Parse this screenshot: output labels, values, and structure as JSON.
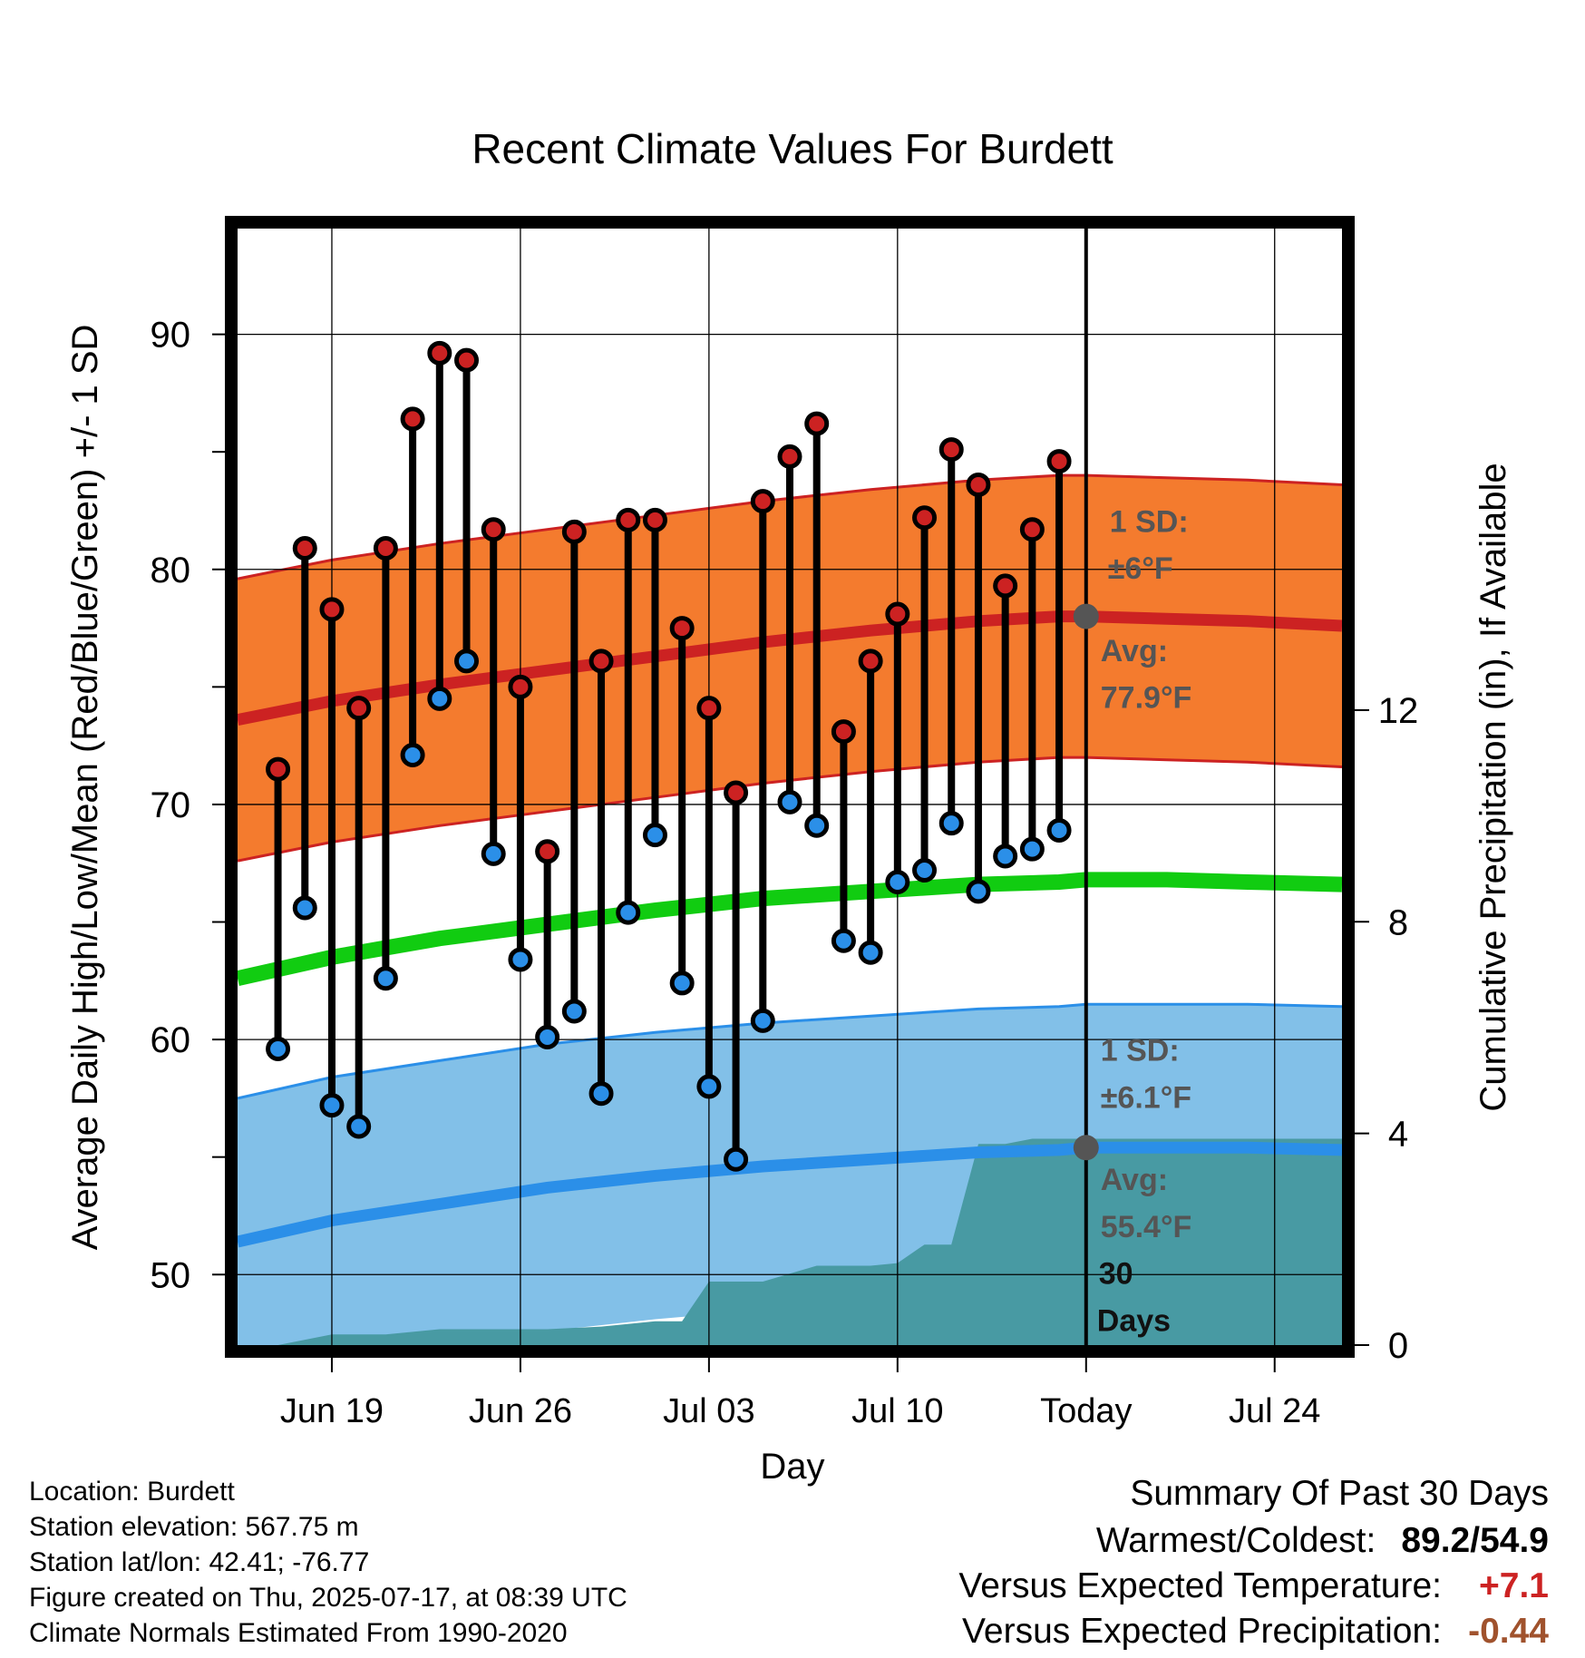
{
  "chart_data": {
    "type": "line",
    "title": "Recent Climate Values For Burdett",
    "xlabel": "Day",
    "ylabel": "Average Daily High/Low/Mean (Red/Blue/Green) +/- 1 SD",
    "y2label": "Cumulative Precipitation (in), If Available",
    "ylim": [
      47.0,
      94.5
    ],
    "y2lim": [
      0,
      21.1
    ],
    "xlim_days_relative_to_today": [
      -31.5,
      9.5
    ],
    "x_tick_labels": [
      "Jun 19",
      "Jun 26",
      "Jul 03",
      "Jul 10",
      "Today",
      "Jul 24"
    ],
    "y_ticks": [
      50,
      60,
      70,
      80,
      90
    ],
    "y2_ticks": [
      0,
      4,
      8,
      12
    ],
    "grid": true,
    "today_marker": "Today",
    "days": [
      "Jun 17",
      "Jun 18",
      "Jun 19",
      "Jun 20",
      "Jun 21",
      "Jun 22",
      "Jun 23",
      "Jun 24",
      "Jun 25",
      "Jun 26",
      "Jun 27",
      "Jun 28",
      "Jun 29",
      "Jun 30",
      "Jul 01",
      "Jul 02",
      "Jul 03",
      "Jul 04",
      "Jul 05",
      "Jul 06",
      "Jul 07",
      "Jul 08",
      "Jul 09",
      "Jul 10",
      "Jul 11",
      "Jul 12",
      "Jul 13",
      "Jul 14",
      "Jul 15",
      "Jul 16"
    ],
    "series": [
      {
        "name": "High",
        "color": "#cc2222",
        "values": [
          71.5,
          80.9,
          78.3,
          74.1,
          80.9,
          86.4,
          89.2,
          88.9,
          81.7,
          75.0,
          68.0,
          81.6,
          76.1,
          82.1,
          82.1,
          77.5,
          74.1,
          70.5,
          82.9,
          84.8,
          86.2,
          73.1,
          76.1,
          78.1,
          82.2,
          85.1,
          83.6,
          79.3,
          81.7,
          84.6
        ]
      },
      {
        "name": "Low",
        "color": "#2b8fe8",
        "values": [
          59.6,
          65.6,
          57.2,
          56.3,
          62.6,
          72.1,
          74.5,
          76.1,
          67.9,
          63.4,
          60.1,
          61.2,
          57.7,
          65.4,
          68.7,
          62.4,
          58.0,
          54.9,
          60.8,
          70.1,
          69.1,
          64.2,
          63.7,
          66.7,
          67.2,
          69.2,
          66.3,
          67.8,
          68.1,
          68.9
        ]
      }
    ],
    "normals": {
      "high_avg": [
        73.6,
        74.4,
        75.1,
        75.7,
        76.3,
        76.9,
        77.4,
        77.8,
        78.0,
        78.0,
        77.9,
        77.8,
        77.6
      ],
      "high_sd": 6,
      "low_avg": [
        51.4,
        52.3,
        53.0,
        53.7,
        54.2,
        54.6,
        54.9,
        55.2,
        55.3,
        55.4,
        55.4,
        55.4,
        55.3
      ],
      "low_sd": 6.1,
      "mean_avg": [
        62.6,
        63.5,
        64.3,
        64.9,
        65.5,
        66.0,
        66.3,
        66.6,
        66.7,
        66.8,
        66.8,
        66.7,
        66.6
      ],
      "normals_x_days_relative_to_today": [
        -31.5,
        -28,
        -24,
        -20,
        -16,
        -12,
        -8,
        -4,
        -1,
        0,
        3,
        6,
        9.5
      ]
    },
    "precip_cumulative": {
      "x_days_relative_to_today": [
        -31.5,
        -30,
        -28,
        -26,
        -24,
        -22,
        -20,
        -18,
        -16,
        -15,
        -14,
        -13,
        -12,
        -10,
        -9,
        -8,
        -7,
        -6,
        -5,
        -4,
        -3.5,
        -3,
        -2,
        -1,
        0,
        9.5
      ],
      "values": [
        0,
        0,
        0.2,
        0.2,
        0.3,
        0.3,
        0.3,
        0.35,
        0.45,
        0.45,
        1.2,
        1.2,
        1.2,
        1.5,
        1.5,
        1.5,
        1.55,
        1.9,
        1.9,
        3.8,
        3.8,
        3.8,
        3.9,
        3.9,
        3.9,
        3.9
      ]
    },
    "annotations": {
      "high_sd_label": "1 SD:",
      "high_sd_value": "±6°F",
      "high_avg_label": "Avg:",
      "high_avg_value": "77.9°F",
      "low_sd_label": "1 SD:",
      "low_sd_value": "±6.1°F",
      "low_avg_label": "Avg:",
      "low_avg_value": "55.4°F",
      "period_num": "30",
      "period_unit": "Days"
    },
    "colors": {
      "high_band": "#f47b2e",
      "high_line": "#cc2222",
      "low_band": "#82c0e8",
      "low_line": "#2b8fe8",
      "mean_line": "#11cc11",
      "precip": "#489aa3",
      "annotation_text": "#555555"
    }
  },
  "info": {
    "location": "Location: Burdett",
    "elevation": "Station elevation: 567.75 m",
    "latlon": "Station lat/lon: 42.41; -76.77",
    "created": "Figure created on Thu, 2025-07-17, at 08:39 UTC",
    "normals": "Climate Normals Estimated From 1990-2020"
  },
  "summary": {
    "title": "Summary Of Past 30 Days",
    "warmest_coldest_label": "Warmest/Coldest:",
    "warmest_coldest_value": "89.2/54.9",
    "temp_label": "Versus Expected Temperature:",
    "temp_value": "+7.1",
    "temp_color": "#cc2222",
    "precip_label": "Versus Expected Precipitation:",
    "precip_value": "-0.44",
    "precip_color": "#a0522d"
  }
}
